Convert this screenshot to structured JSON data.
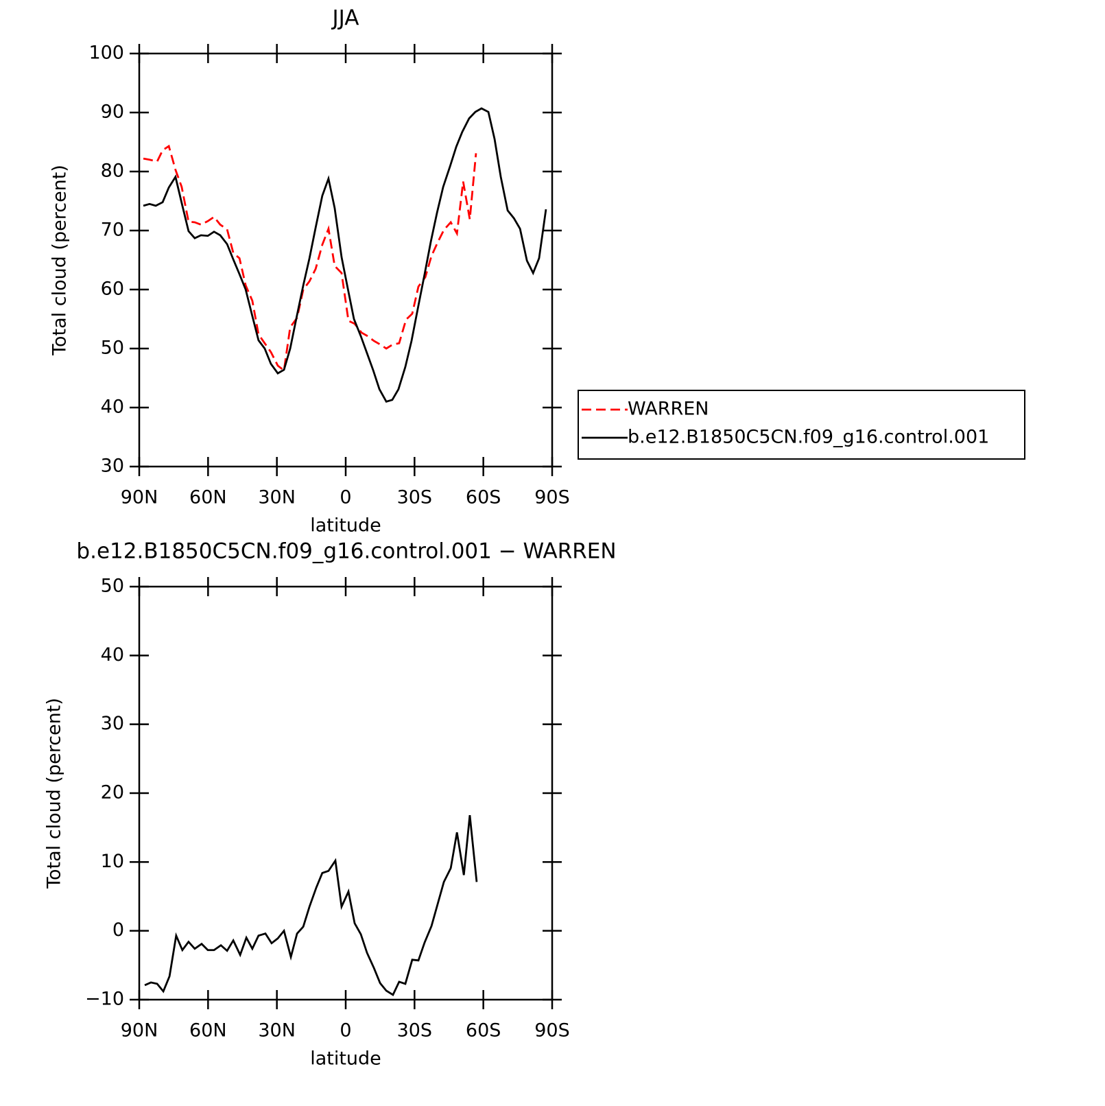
{
  "chart_data": [
    {
      "type": "line",
      "title": "JJA",
      "xlabel": "latitude",
      "ylabel": "Total cloud (percent)",
      "xlim": [
        90,
        -90
      ],
      "xticks": [
        {
          "value": 90,
          "label": "90N"
        },
        {
          "value": 60,
          "label": "60N"
        },
        {
          "value": 30,
          "label": "30N"
        },
        0,
        {
          "value": -30,
          "label": "30S"
        },
        {
          "value": -60,
          "label": "60S"
        },
        {
          "value": -90,
          "label": "90S"
        }
      ],
      "ylim": [
        30,
        100
      ],
      "yticks": [
        30,
        40,
        50,
        60,
        70,
        80,
        90,
        100
      ],
      "legend": "right",
      "series": [
        {
          "name": "WARREN",
          "color": "#ff0000",
          "dashed": true,
          "x": [
            88.2,
            85.5,
            82.2,
            79.8,
            77.1,
            74.2,
            71.5,
            68.5,
            65.8,
            63.1,
            60.1,
            57.4,
            54.7,
            51.7,
            49.0,
            46.3,
            43.6,
            40.7,
            38.0,
            35.3,
            32.6,
            29.6,
            26.9,
            24.2,
            21.2,
            18.5,
            15.8,
            13.1,
            10.2,
            7.5,
            4.8,
            1.8,
            -1.2,
            -3.9,
            -6.9,
            -9.6,
            -12.3,
            -15.0,
            -17.7,
            -20.6,
            -23.3,
            -26.3,
            -29.0,
            -31.7,
            -34.7,
            -37.4,
            -40.1,
            -42.8,
            -45.8,
            -48.5,
            -51.2,
            -54.1,
            -56.8
          ],
          "values": [
            82.2,
            82.0,
            81.7,
            83.6,
            84.3,
            80.3,
            77.4,
            71.5,
            71.4,
            71.0,
            71.6,
            72.3,
            71.0,
            70.2,
            66.2,
            65.3,
            60.7,
            58.1,
            52.4,
            50.9,
            49.4,
            47.1,
            46.3,
            53.6,
            55.2,
            60.0,
            61.4,
            63.5,
            67.6,
            70.3,
            64.0,
            62.8,
            54.7,
            54.2,
            52.7,
            52.1,
            51.3,
            50.7,
            50.0,
            50.7,
            50.9,
            54.9,
            55.9,
            60.5,
            62.1,
            65.7,
            68.0,
            70.1,
            71.4,
            69.5,
            78.3,
            71.9,
            83.1
          ]
        },
        {
          "name": "b.e12.B1850C5CN.f09_g16.control.001",
          "color": "#000000",
          "dashed": false,
          "x": [
            88.2,
            85.5,
            82.8,
            79.8,
            77.1,
            74.2,
            71.2,
            68.5,
            65.8,
            63.1,
            60.1,
            57.4,
            54.7,
            51.7,
            49.0,
            46.3,
            43.6,
            40.7,
            38.0,
            35.3,
            32.6,
            29.6,
            26.9,
            24.2,
            21.2,
            18.5,
            15.8,
            13.1,
            10.2,
            7.5,
            4.8,
            1.8,
            -0.9,
            -3.6,
            -6.6,
            -9.3,
            -12.0,
            -14.7,
            -17.7,
            -20.3,
            -23.0,
            -26.0,
            -28.7,
            -31.4,
            -34.4,
            -37.1,
            -39.8,
            -42.5,
            -45.5,
            -48.2,
            -50.8,
            -53.8,
            -56.5,
            -59.2,
            -62.2,
            -64.9,
            -67.6,
            -70.6,
            -73.3,
            -76.0,
            -79.0,
            -81.7,
            -84.3,
            -87.3
          ],
          "values": [
            74.2,
            74.5,
            74.2,
            74.8,
            77.3,
            79.1,
            74.2,
            69.9,
            68.7,
            69.2,
            69.1,
            69.8,
            69.2,
            67.7,
            65.1,
            62.6,
            60.0,
            55.5,
            51.4,
            50.0,
            47.4,
            45.8,
            46.4,
            50.0,
            55.7,
            60.7,
            65.3,
            70.5,
            75.9,
            78.8,
            73.8,
            65.5,
            60.2,
            55.0,
            52.1,
            49.2,
            46.3,
            43.1,
            41.0,
            41.3,
            43.1,
            46.9,
            51.3,
            56.7,
            62.6,
            68.1,
            73.0,
            77.4,
            80.9,
            84.2,
            86.7,
            89.0,
            90.1,
            90.7,
            90.1,
            85.5,
            79.1,
            73.4,
            72.1,
            70.3,
            64.9,
            62.8,
            65.3,
            73.6
          ]
        }
      ]
    },
    {
      "type": "line",
      "title": "b.e12.B1850C5CN.f09_g16.control.001 − WARREN",
      "xlabel": "latitude",
      "ylabel": "Total cloud (percent)",
      "xlim": [
        90,
        -90
      ],
      "xticks": [
        {
          "value": 90,
          "label": "90N"
        },
        {
          "value": 60,
          "label": "60N"
        },
        {
          "value": 30,
          "label": "30N"
        },
        0,
        {
          "value": -30,
          "label": "30S"
        },
        {
          "value": -60,
          "label": "60S"
        },
        {
          "value": -90,
          "label": "90S"
        }
      ],
      "ylim": [
        -10,
        50
      ],
      "yticks": [
        {
          "value": -10,
          "label": "−10"
        },
        0,
        10,
        20,
        30,
        40,
        50
      ],
      "series": [
        {
          "color": "#000000",
          "dashed": false,
          "x": [
            87.6,
            84.9,
            82.2,
            79.5,
            76.8,
            73.9,
            71.2,
            68.5,
            65.8,
            62.8,
            60.1,
            57.4,
            54.4,
            51.7,
            49.0,
            46.0,
            43.3,
            40.7,
            38.0,
            35.0,
            32.3,
            29.6,
            26.9,
            23.9,
            21.2,
            18.5,
            15.8,
            12.8,
            10.2,
            7.5,
            4.5,
            1.8,
            -1.2,
            -3.9,
            -6.6,
            -9.3,
            -12.3,
            -15.0,
            -17.7,
            -20.6,
            -23.3,
            -26.0,
            -29.0,
            -31.7,
            -34.4,
            -37.4,
            -40.1,
            -42.8,
            -45.8,
            -48.5,
            -51.5,
            -54.1,
            -57.1
          ],
          "values": [
            -7.9,
            -7.5,
            -7.7,
            -8.8,
            -6.6,
            -0.7,
            -2.8,
            -1.6,
            -2.6,
            -1.9,
            -2.8,
            -2.8,
            -2.1,
            -2.9,
            -1.4,
            -3.5,
            -1.0,
            -2.6,
            -0.7,
            -0.4,
            -1.8,
            -1.1,
            0.0,
            -3.8,
            -0.4,
            0.6,
            3.5,
            6.3,
            8.4,
            8.7,
            10.2,
            3.5,
            5.7,
            1.1,
            -0.5,
            -3.2,
            -5.4,
            -7.6,
            -8.7,
            -9.3,
            -7.4,
            -7.7,
            -4.2,
            -4.3,
            -1.7,
            0.7,
            3.9,
            7.1,
            9.1,
            14.3,
            8.1,
            16.8,
            7.1
          ]
        }
      ]
    }
  ]
}
